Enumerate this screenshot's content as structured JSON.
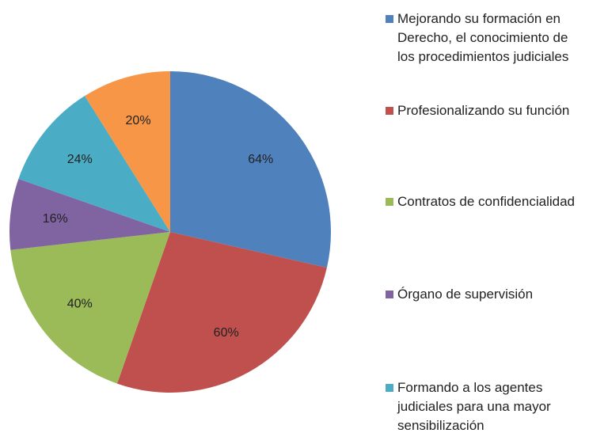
{
  "chart_data": {
    "type": "pie",
    "categories": [
      "Mejorando su formación en Derecho, el conocimiento de los procedimientos judiciales",
      "Profesionalizando su función",
      "Contratos de confidencialidad",
      "Órgano de supervisión",
      "Formando a los agentes judiciales para una mayor sensibilización",
      null
    ],
    "values": [
      64,
      60,
      40,
      16,
      24,
      20
    ],
    "value_labels": [
      "64%",
      "60%",
      "40%",
      "16%",
      "24%",
      "20%"
    ],
    "colors": [
      "#4f81bd",
      "#c0504d",
      "#9bbb59",
      "#8064a2",
      "#4bacc6",
      "#f79646"
    ]
  }
}
